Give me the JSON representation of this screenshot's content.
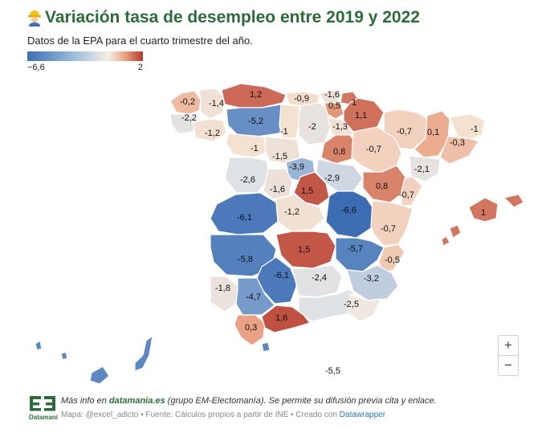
{
  "header": {
    "icon": "construction-worker-icon",
    "title": "Variación tasa de desempleo entre 2019 y 2022",
    "subtitle": "Datos de la EPA para el cuarto trimestre del año."
  },
  "legend": {
    "min_label": "−6,6",
    "max_label": "2",
    "min": -6.6,
    "max": 2
  },
  "colors": {
    "title": "#2e6b3a",
    "low": "#3c6db3",
    "mid": "#f4efe8",
    "high": "#b2382f"
  },
  "map": {
    "regions": [
      {
        "name": "a-coruna",
        "value": -0.2
      },
      {
        "name": "lugo",
        "value": -1.4
      },
      {
        "name": "pontevedra",
        "value": -2.2
      },
      {
        "name": "ourense",
        "value": -1.2
      },
      {
        "name": "asturias",
        "value": 1.2
      },
      {
        "name": "cantabria",
        "value": -0.9
      },
      {
        "name": "leon",
        "value": -5.2
      },
      {
        "name": "palencia",
        "value": -1
      },
      {
        "name": "burgos",
        "value": -2
      },
      {
        "name": "bizkaia",
        "value": -1.6
      },
      {
        "name": "gipuzkoa",
        "value": 1
      },
      {
        "name": "alava",
        "value": 0.5
      },
      {
        "name": "navarra",
        "value": 1.1
      },
      {
        "name": "la-rioja",
        "value": -1.3
      },
      {
        "name": "huesca",
        "value": -0.7
      },
      {
        "name": "lleida",
        "value": 0.1
      },
      {
        "name": "girona",
        "value": -1
      },
      {
        "name": "barcelona",
        "value": -0.3
      },
      {
        "name": "zamora",
        "value": -1
      },
      {
        "name": "valladolid",
        "value": -1.5
      },
      {
        "name": "soria",
        "value": 0.8
      },
      {
        "name": "zaragoza",
        "value": -0.7
      },
      {
        "name": "tarragona",
        "value": -2.1
      },
      {
        "name": "salamanca",
        "value": -2.6
      },
      {
        "name": "segovia",
        "value": -3.9
      },
      {
        "name": "avila",
        "value": -1.6
      },
      {
        "name": "guadalajara",
        "value": -2.9
      },
      {
        "name": "madrid",
        "value": 1.5
      },
      {
        "name": "teruel",
        "value": 0.8
      },
      {
        "name": "castellon",
        "value": -0.7
      },
      {
        "name": "baleares",
        "value": 1
      },
      {
        "name": "caceres",
        "value": -6.1
      },
      {
        "name": "toledo",
        "value": -1.2
      },
      {
        "name": "cuenca",
        "value": -6.6
      },
      {
        "name": "valencia",
        "value": -0.7
      },
      {
        "name": "badajoz",
        "value": -5.8
      },
      {
        "name": "ciudad-real",
        "value": 1.5
      },
      {
        "name": "albacete",
        "value": -5.7
      },
      {
        "name": "alicante",
        "value": -0.5
      },
      {
        "name": "cordoba",
        "value": -6.1
      },
      {
        "name": "jaen",
        "value": -2.4
      },
      {
        "name": "murcia",
        "value": -3.2
      },
      {
        "name": "huelva",
        "value": -1.8
      },
      {
        "name": "sevilla",
        "value": -4.7
      },
      {
        "name": "granada",
        "value": -2.5
      },
      {
        "name": "cadiz",
        "value": 0.3
      },
      {
        "name": "malaga",
        "value": 1.6
      },
      {
        "name": "ceuta",
        "value": -5.5
      },
      {
        "name": "las-palmas",
        "value": -5.5
      },
      {
        "name": "santa-cruz-tenerife",
        "value": -5.5
      }
    ],
    "labels": [
      {
        "text": "-0,2",
        "region": "a-coruna"
      },
      {
        "text": "-1,4",
        "region": "lugo"
      },
      {
        "text": "-2,2",
        "region": "pontevedra"
      },
      {
        "text": "-1,2",
        "region": "ourense"
      },
      {
        "text": "1,2",
        "region": "asturias"
      },
      {
        "text": "-0,9",
        "region": "cantabria"
      },
      {
        "text": "-5,2",
        "region": "leon"
      },
      {
        "text": "-1",
        "region": "palencia"
      },
      {
        "text": "-2",
        "region": "burgos"
      },
      {
        "text": "-1,6",
        "region": "bizkaia"
      },
      {
        "text": "1",
        "region": "gipuzkoa"
      },
      {
        "text": "0,5",
        "region": "alava"
      },
      {
        "text": "1,1",
        "region": "navarra"
      },
      {
        "text": "-1,3",
        "region": "la-rioja"
      },
      {
        "text": "-0,7",
        "region": "huesca"
      },
      {
        "text": "0,1",
        "region": "lleida"
      },
      {
        "text": "-1",
        "region": "girona"
      },
      {
        "text": "-0,3",
        "region": "barcelona"
      },
      {
        "text": "-1",
        "region": "zamora"
      },
      {
        "text": "-1,5",
        "region": "valladolid"
      },
      {
        "text": "0,8",
        "region": "soria"
      },
      {
        "text": "-0,7",
        "region": "zaragoza"
      },
      {
        "text": "-2,1",
        "region": "tarragona"
      },
      {
        "text": "-2,6",
        "region": "salamanca"
      },
      {
        "text": "-3,9",
        "region": "segovia"
      },
      {
        "text": "-1,6",
        "region": "avila"
      },
      {
        "text": "-2,9",
        "region": "guadalajara"
      },
      {
        "text": "1,5",
        "region": "madrid"
      },
      {
        "text": "0,8",
        "region": "teruel"
      },
      {
        "text": "-0,7",
        "region": "castellon"
      },
      {
        "text": "1",
        "region": "baleares"
      },
      {
        "text": "-6,1",
        "region": "caceres"
      },
      {
        "text": "-1,2",
        "region": "toledo"
      },
      {
        "text": "-6,6",
        "region": "cuenca"
      },
      {
        "text": "-0,7",
        "region": "valencia"
      },
      {
        "text": "-5,8",
        "region": "badajoz"
      },
      {
        "text": "1,5",
        "region": "ciudad-real"
      },
      {
        "text": "-5,7",
        "region": "albacete"
      },
      {
        "text": "-0,5",
        "region": "alicante"
      },
      {
        "text": "-6,1",
        "region": "cordoba"
      },
      {
        "text": "-2,4",
        "region": "jaen"
      },
      {
        "text": "-3,2",
        "region": "murcia"
      },
      {
        "text": "-1,8",
        "region": "huelva"
      },
      {
        "text": "-4,7",
        "region": "sevilla"
      },
      {
        "text": "-2,5",
        "region": "granada"
      },
      {
        "text": "0,3",
        "region": "cadiz"
      },
      {
        "text": "1,6",
        "region": "malaga"
      },
      {
        "text": "-5,5",
        "region": "ceuta"
      }
    ]
  },
  "controls": {
    "zoom_in": "+",
    "zoom_out": "−"
  },
  "footer": {
    "logo_text": "Datamanía",
    "line1_prefix": "Más info en ",
    "line1_link": "datamania.es",
    "line1_suffix": " (grupo EM-Electomanía). Se permite su difusión previa cita y enlace.",
    "line2_text": "Mapa: @excel_adicto • Fuente: Cálculos propios a partir de INE • Creado con ",
    "line2_link": "Datawrapper"
  }
}
